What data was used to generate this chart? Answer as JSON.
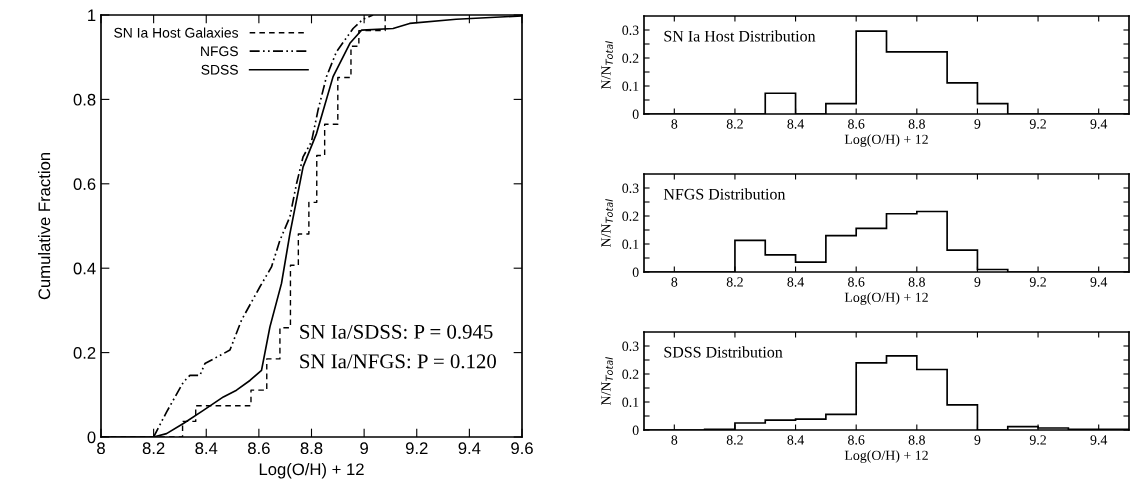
{
  "chart_data": [
    {
      "type": "line",
      "xlabel": "Log(O/H) + 12",
      "ylabel": "Cumulative Fraction",
      "xlim": [
        8,
        9.6
      ],
      "ylim": [
        0,
        1
      ],
      "xticks": [
        8,
        8.2,
        8.4,
        8.6,
        8.8,
        9,
        9.2,
        9.4,
        9.6
      ],
      "yticks": [
        0,
        0.2,
        0.4,
        0.6,
        0.8,
        1
      ],
      "legend": "top left",
      "annotations": [
        "SN Ia/SDSS: P = 0.945",
        "SN Ia/NFGS: P = 0.120"
      ],
      "series": [
        {
          "name": "SN Ia Host Galaxies",
          "type": "step",
          "color": "#000000",
          "line_style": "dashed",
          "x": [
            8.0,
            8.31,
            8.36,
            8.57,
            8.63,
            8.68,
            8.72,
            8.75,
            8.79,
            8.82,
            8.85,
            8.9,
            8.95,
            8.98,
            9.08
          ],
          "values": [
            0,
            0.037,
            0.074,
            0.111,
            0.185,
            0.259,
            0.407,
            0.481,
            0.556,
            0.667,
            0.741,
            0.852,
            0.926,
            0.963,
            1.0
          ]
        },
        {
          "name": "NFGS",
          "type": "line",
          "color": "#000000",
          "line_style": "dashdot",
          "x": [
            8.2,
            8.249,
            8.313,
            8.338,
            8.376,
            8.395,
            8.49,
            8.534,
            8.604,
            8.648,
            8.68,
            8.718,
            8.743,
            8.768,
            8.8,
            8.825,
            8.857,
            8.895,
            8.958,
            8.996,
            9.034
          ],
          "values": [
            0,
            0.059,
            0.13,
            0.146,
            0.146,
            0.174,
            0.206,
            0.277,
            0.356,
            0.403,
            0.466,
            0.522,
            0.6,
            0.664,
            0.7,
            0.775,
            0.854,
            0.913,
            0.968,
            0.99,
            1.0
          ]
        },
        {
          "name": "SDSS",
          "type": "line",
          "color": "#000000",
          "line_style": "solid",
          "x": [
            8.0,
            8.2,
            8.249,
            8.313,
            8.389,
            8.465,
            8.515,
            8.566,
            8.61,
            8.642,
            8.686,
            8.718,
            8.768,
            8.819,
            8.882,
            8.946,
            8.99,
            9.11,
            9.173,
            9.35,
            9.6
          ],
          "values": [
            0,
            0,
            0.008,
            0.032,
            0.063,
            0.095,
            0.111,
            0.134,
            0.158,
            0.261,
            0.364,
            0.482,
            0.64,
            0.719,
            0.854,
            0.933,
            0.964,
            0.968,
            0.98,
            0.99,
            0.998
          ]
        }
      ]
    },
    {
      "type": "histogram",
      "xlabel": "Log(O/H) + 12",
      "ylabel": "N/N$_{Total}$",
      "xlim": [
        7.9,
        9.5
      ],
      "ylim": [
        0,
        0.35
      ],
      "xticks": [
        8,
        8.2,
        8.4,
        8.6,
        8.8,
        9,
        9.2,
        9.4
      ],
      "yticks": [
        0,
        {
          "value": 0.05,
          "label": null
        },
        0.1,
        {
          "value": 0.15,
          "label": null
        },
        0.2,
        {
          "value": 0.25,
          "label": null
        },
        0.3
      ],
      "annotations": [
        "SN Ia Host Distribution"
      ],
      "color": "#000000",
      "bins": [
        7.9,
        8.0,
        8.1,
        8.2,
        8.3,
        8.4,
        8.5,
        8.6,
        8.7,
        8.8,
        8.9,
        9.0,
        9.1,
        9.2,
        9.3,
        9.4,
        9.5
      ],
      "values": [
        0,
        0,
        0,
        0,
        0.074,
        0,
        0.037,
        0.296,
        0.222,
        0.222,
        0.111,
        0.037,
        0,
        0,
        0,
        0
      ]
    },
    {
      "type": "histogram",
      "xlabel": "Log(O/H) + 12",
      "ylabel": "N/N$_{Total}$",
      "xlim": [
        7.9,
        9.5
      ],
      "ylim": [
        0,
        0.35
      ],
      "xticks": [
        8,
        8.2,
        8.4,
        8.6,
        8.8,
        9,
        9.2,
        9.4
      ],
      "yticks": [
        0,
        {
          "value": 0.05,
          "label": null
        },
        0.1,
        {
          "value": 0.15,
          "label": null
        },
        0.2,
        {
          "value": 0.25,
          "label": null
        },
        0.3
      ],
      "annotations": [
        "NFGS Distribution"
      ],
      "color": "#000000",
      "bins": [
        7.9,
        8.0,
        8.1,
        8.2,
        8.3,
        8.4,
        8.5,
        8.6,
        8.7,
        8.8,
        8.9,
        9.0,
        9.1,
        9.2,
        9.3,
        9.4,
        9.5
      ],
      "values": [
        0,
        0,
        0,
        0.113,
        0.061,
        0.035,
        0.13,
        0.156,
        0.208,
        0.216,
        0.078,
        0.009,
        0,
        0,
        0,
        0
      ]
    },
    {
      "type": "histogram",
      "xlabel": "Log(O/H) + 12",
      "ylabel": "N/N$_{Total}$",
      "xlim": [
        7.9,
        9.5
      ],
      "ylim": [
        0,
        0.35
      ],
      "xticks": [
        8,
        8.2,
        8.4,
        8.6,
        8.8,
        9,
        9.2,
        9.4
      ],
      "yticks": [
        0,
        {
          "value": 0.05,
          "label": null
        },
        0.1,
        {
          "value": 0.15,
          "label": null
        },
        0.2,
        {
          "value": 0.25,
          "label": null
        },
        0.3
      ],
      "annotations": [
        "SDSS Distribution"
      ],
      "color": "#000000",
      "bins": [
        7.9,
        8.0,
        8.1,
        8.2,
        8.3,
        8.4,
        8.5,
        8.6,
        8.7,
        8.8,
        8.9,
        9.0,
        9.1,
        9.2,
        9.3,
        9.4,
        9.5
      ],
      "values": [
        0,
        0,
        0.002,
        0.025,
        0.035,
        0.039,
        0.056,
        0.24,
        0.265,
        0.216,
        0.09,
        0,
        0.012,
        0.007,
        0.002,
        0.002
      ]
    }
  ]
}
